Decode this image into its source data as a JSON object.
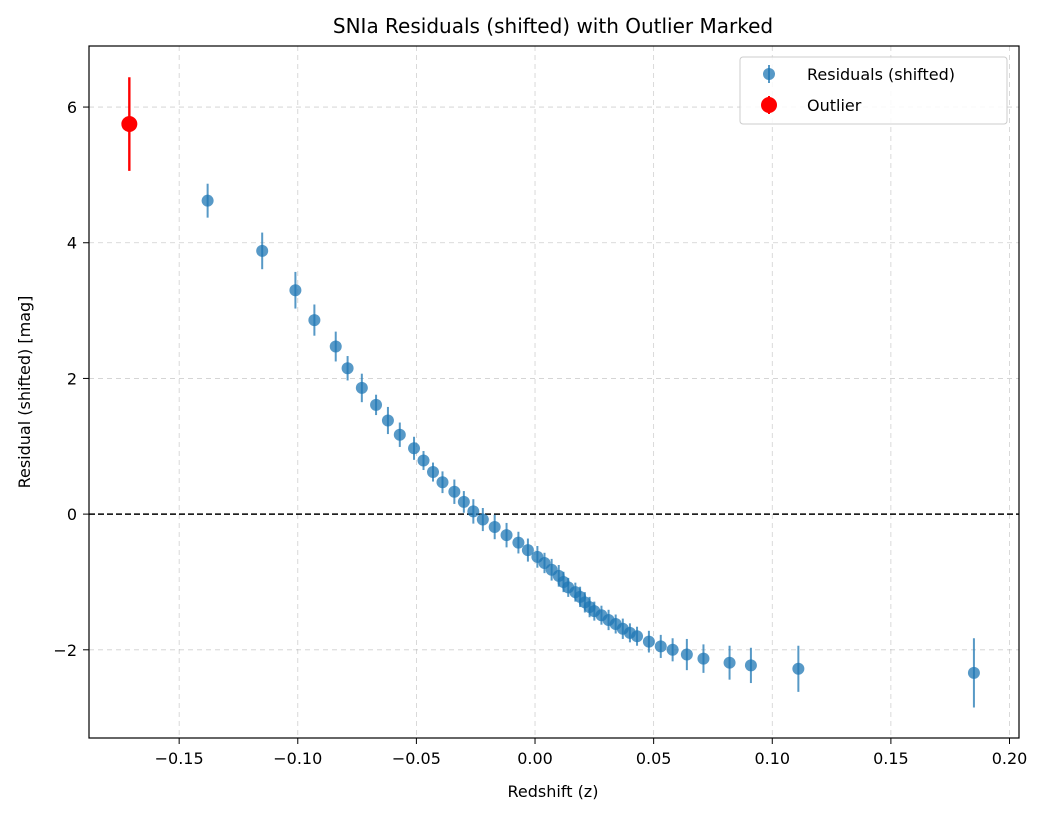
{
  "chart_data": {
    "type": "scatter",
    "title": "SNIa Residuals (shifted) with Outlier Marked",
    "xlabel": "Redshift (z)",
    "ylabel": "Residual (shifted) [mag]",
    "xlim": [
      -0.188,
      0.204
    ],
    "ylim": [
      -3.3,
      6.9
    ],
    "x_ticks": [
      -0.15,
      -0.1,
      -0.05,
      0.0,
      0.05,
      0.1,
      0.15,
      0.2
    ],
    "x_tick_labels": [
      "−0.15",
      "−0.10",
      "−0.05",
      "0.00",
      "0.05",
      "0.10",
      "0.15",
      "0.20"
    ],
    "y_ticks": [
      -2,
      0,
      2,
      4,
      6
    ],
    "y_tick_labels": [
      "−2",
      "0",
      "2",
      "4",
      "6"
    ],
    "grid": true,
    "reference_line": {
      "y": 0,
      "style": "dashed",
      "color": "#000000"
    },
    "legend_position": "top-right",
    "series": [
      {
        "name": "Residuals (shifted)",
        "color": "#1f77b4",
        "marker": "circle",
        "error_bars": true,
        "points": [
          {
            "x": -0.138,
            "y": 4.62,
            "err": 0.25
          },
          {
            "x": -0.115,
            "y": 3.88,
            "err": 0.27
          },
          {
            "x": -0.101,
            "y": 3.3,
            "err": 0.27
          },
          {
            "x": -0.093,
            "y": 2.86,
            "err": 0.23
          },
          {
            "x": -0.084,
            "y": 2.47,
            "err": 0.22
          },
          {
            "x": -0.079,
            "y": 2.15,
            "err": 0.18
          },
          {
            "x": -0.073,
            "y": 1.86,
            "err": 0.21
          },
          {
            "x": -0.067,
            "y": 1.61,
            "err": 0.15
          },
          {
            "x": -0.062,
            "y": 1.38,
            "err": 0.2
          },
          {
            "x": -0.057,
            "y": 1.17,
            "err": 0.18
          },
          {
            "x": -0.051,
            "y": 0.97,
            "err": 0.17
          },
          {
            "x": -0.047,
            "y": 0.79,
            "err": 0.14
          },
          {
            "x": -0.043,
            "y": 0.62,
            "err": 0.14
          },
          {
            "x": -0.039,
            "y": 0.47,
            "err": 0.16
          },
          {
            "x": -0.034,
            "y": 0.33,
            "err": 0.18
          },
          {
            "x": -0.03,
            "y": 0.18,
            "err": 0.16
          },
          {
            "x": -0.026,
            "y": 0.04,
            "err": 0.18
          },
          {
            "x": -0.022,
            "y": -0.08,
            "err": 0.17
          },
          {
            "x": -0.017,
            "y": -0.19,
            "err": 0.18
          },
          {
            "x": -0.012,
            "y": -0.31,
            "err": 0.18
          },
          {
            "x": -0.007,
            "y": -0.42,
            "err": 0.16
          },
          {
            "x": -0.003,
            "y": -0.53,
            "err": 0.17
          },
          {
            "x": 0.001,
            "y": -0.63,
            "err": 0.16
          },
          {
            "x": 0.004,
            "y": -0.72,
            "err": 0.15
          },
          {
            "x": 0.007,
            "y": -0.82,
            "err": 0.16
          },
          {
            "x": 0.01,
            "y": -0.91,
            "err": 0.16
          },
          {
            "x": 0.012,
            "y": -1.0,
            "err": 0.15
          },
          {
            "x": 0.014,
            "y": -1.08,
            "err": 0.14
          },
          {
            "x": 0.017,
            "y": -1.15,
            "err": 0.14
          },
          {
            "x": 0.019,
            "y": -1.22,
            "err": 0.15
          },
          {
            "x": 0.021,
            "y": -1.3,
            "err": 0.15
          },
          {
            "x": 0.023,
            "y": -1.37,
            "err": 0.15
          },
          {
            "x": 0.025,
            "y": -1.43,
            "err": 0.14
          },
          {
            "x": 0.028,
            "y": -1.49,
            "err": 0.14
          },
          {
            "x": 0.031,
            "y": -1.56,
            "err": 0.15
          },
          {
            "x": 0.034,
            "y": -1.62,
            "err": 0.14
          },
          {
            "x": 0.037,
            "y": -1.69,
            "err": 0.15
          },
          {
            "x": 0.04,
            "y": -1.75,
            "err": 0.14
          },
          {
            "x": 0.043,
            "y": -1.8,
            "err": 0.14
          },
          {
            "x": 0.048,
            "y": -1.88,
            "err": 0.16
          },
          {
            "x": 0.053,
            "y": -1.95,
            "err": 0.17
          },
          {
            "x": 0.058,
            "y": -2.0,
            "err": 0.17
          },
          {
            "x": 0.064,
            "y": -2.07,
            "err": 0.23
          },
          {
            "x": 0.071,
            "y": -2.13,
            "err": 0.21
          },
          {
            "x": 0.082,
            "y": -2.19,
            "err": 0.25
          },
          {
            "x": 0.091,
            "y": -2.23,
            "err": 0.26
          },
          {
            "x": 0.111,
            "y": -2.28,
            "err": 0.34
          },
          {
            "x": 0.185,
            "y": -2.34,
            "err": 0.51
          }
        ]
      },
      {
        "name": "Outlier",
        "color": "#ff0000",
        "marker": "circle",
        "error_bars": true,
        "points": [
          {
            "x": -0.171,
            "y": 5.75,
            "err": 0.69
          }
        ]
      }
    ]
  }
}
